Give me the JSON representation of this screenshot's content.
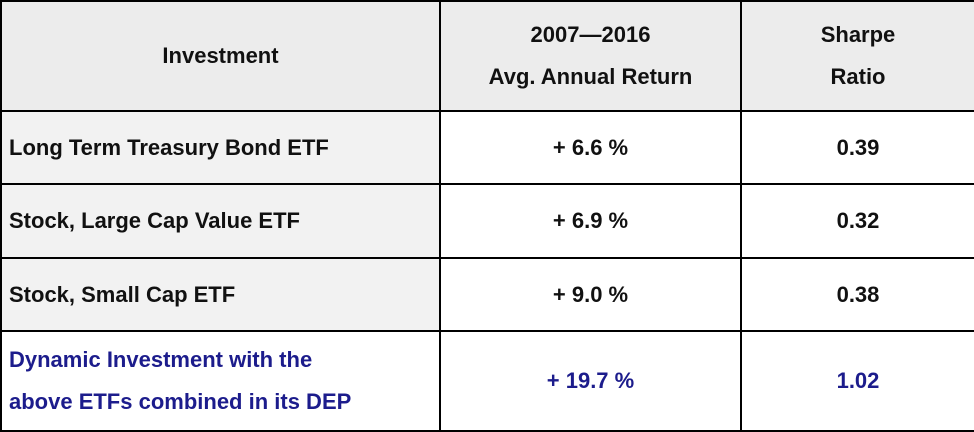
{
  "colors": {
    "header_bg": "#ececec",
    "name_bg": "#f2f2f2",
    "text": "#111111",
    "highlight_text": "#1c1c8c",
    "border": "#000000"
  },
  "chart_data": {
    "type": "table",
    "columns": [
      {
        "lines": [
          "Investment"
        ]
      },
      {
        "lines": [
          "2007—2016",
          "Avg. Annual Return"
        ]
      },
      {
        "lines": [
          "Sharpe",
          "Ratio"
        ]
      }
    ],
    "rows": [
      {
        "name_lines": [
          "Long Term Treasury Bond ETF"
        ],
        "return": "+ 6.6 %",
        "sharpe": "0.39",
        "highlight": false
      },
      {
        "name_lines": [
          "Stock, Large Cap Value ETF"
        ],
        "return": "+ 6.9 %",
        "sharpe": "0.32",
        "highlight": false
      },
      {
        "name_lines": [
          "Stock, Small Cap ETF"
        ],
        "return": "+ 9.0 %",
        "sharpe": "0.38",
        "highlight": false
      },
      {
        "name_lines": [
          "Dynamic Investment  with the",
          "above ETFs combined in its DEP"
        ],
        "return": "+ 19.7 %",
        "sharpe": "1.02",
        "highlight": true
      }
    ]
  }
}
